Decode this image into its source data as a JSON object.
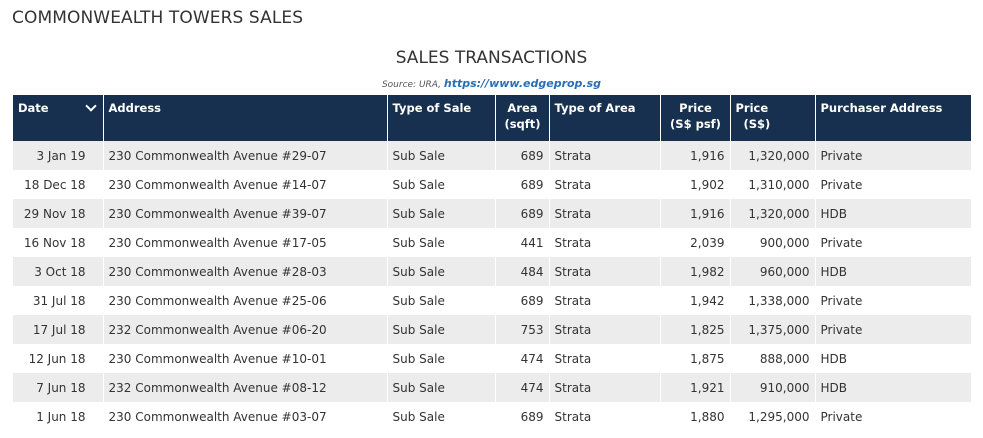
{
  "page": {
    "title": "COMMONWEALTH TOWERS SALES",
    "section_title": "SALES TRANSACTIONS",
    "source_prefix": "Source: URA,",
    "source_link": "https://www.edgeprop.sg"
  },
  "table": {
    "headers": {
      "date": "Date",
      "address": "Address",
      "type_of_sale": "Type of Sale",
      "area_line1": "Area",
      "area_line2": "(sqft)",
      "type_of_area": "Type of Area",
      "price_psf_line1": "Price",
      "price_psf_line2": "(S$ psf)",
      "price_line1": "Price",
      "price_line2": "(S$)",
      "purchaser": "Purchaser Address"
    },
    "sort_icon": "chevron-down-icon",
    "rows": [
      {
        "date": "3 Jan 19",
        "address": "230 Commonwealth Avenue #29-07",
        "type_of_sale": "Sub Sale",
        "area": "689",
        "type_of_area": "Strata",
        "price_psf": "1,916",
        "price": "1,320,000",
        "purchaser": "Private"
      },
      {
        "date": "18 Dec 18",
        "address": "230 Commonwealth Avenue #14-07",
        "type_of_sale": "Sub Sale",
        "area": "689",
        "type_of_area": "Strata",
        "price_psf": "1,902",
        "price": "1,310,000",
        "purchaser": "Private"
      },
      {
        "date": "29 Nov 18",
        "address": "230 Commonwealth Avenue #39-07",
        "type_of_sale": "Sub Sale",
        "area": "689",
        "type_of_area": "Strata",
        "price_psf": "1,916",
        "price": "1,320,000",
        "purchaser": "HDB"
      },
      {
        "date": "16 Nov 18",
        "address": "230 Commonwealth Avenue #17-05",
        "type_of_sale": "Sub Sale",
        "area": "441",
        "type_of_area": "Strata",
        "price_psf": "2,039",
        "price": "900,000",
        "purchaser": "Private"
      },
      {
        "date": "3 Oct 18",
        "address": "230 Commonwealth Avenue #28-03",
        "type_of_sale": "Sub Sale",
        "area": "484",
        "type_of_area": "Strata",
        "price_psf": "1,982",
        "price": "960,000",
        "purchaser": "HDB"
      },
      {
        "date": "31 Jul 18",
        "address": "230 Commonwealth Avenue #25-06",
        "type_of_sale": "Sub Sale",
        "area": "689",
        "type_of_area": "Strata",
        "price_psf": "1,942",
        "price": "1,338,000",
        "purchaser": "Private"
      },
      {
        "date": "17 Jul 18",
        "address": "232 Commonwealth Avenue #06-20",
        "type_of_sale": "Sub Sale",
        "area": "753",
        "type_of_area": "Strata",
        "price_psf": "1,825",
        "price": "1,375,000",
        "purchaser": "Private"
      },
      {
        "date": "12 Jun 18",
        "address": "230 Commonwealth Avenue #10-01",
        "type_of_sale": "Sub Sale",
        "area": "474",
        "type_of_area": "Strata",
        "price_psf": "1,875",
        "price": "888,000",
        "purchaser": "HDB"
      },
      {
        "date": "7 Jun 18",
        "address": "232 Commonwealth Avenue #08-12",
        "type_of_sale": "Sub Sale",
        "area": "474",
        "type_of_area": "Strata",
        "price_psf": "1,921",
        "price": "910,000",
        "purchaser": "HDB"
      },
      {
        "date": "1 Jun 18",
        "address": "230 Commonwealth Avenue #03-07",
        "type_of_sale": "Sub Sale",
        "area": "689",
        "type_of_area": "Strata",
        "price_psf": "1,880",
        "price": "1,295,000",
        "purchaser": "Private"
      }
    ]
  },
  "colors": {
    "header_bg": "#17304f",
    "stripe": "#ececec",
    "link": "#2a6fb5"
  }
}
